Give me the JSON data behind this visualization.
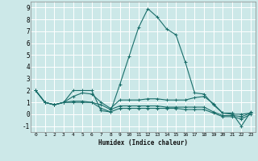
{
  "xlabel": "Humidex (Indice chaleur)",
  "bg_color": "#cce8e8",
  "grid_color": "#ffffff",
  "line_color": "#1a6e6a",
  "xlim": [
    -0.5,
    23.5
  ],
  "ylim": [
    -1.5,
    9.5
  ],
  "ytick_values": [
    -1,
    0,
    1,
    2,
    3,
    4,
    5,
    6,
    7,
    8,
    9
  ],
  "lines": [
    {
      "x": [
        0,
        1,
        2,
        3,
        4,
        5,
        6,
        7,
        8,
        9,
        10,
        11,
        12,
        13,
        14,
        15,
        16,
        17,
        18,
        19,
        20,
        21,
        22,
        23
      ],
      "y": [
        2.0,
        1.0,
        0.8,
        1.0,
        2.0,
        2.0,
        2.0,
        0.3,
        0.2,
        2.5,
        4.9,
        7.3,
        8.9,
        8.2,
        7.2,
        6.7,
        4.4,
        1.8,
        1.7,
        0.8,
        0.1,
        0.1,
        -1.0,
        0.2
      ]
    },
    {
      "x": [
        0,
        1,
        2,
        3,
        4,
        5,
        6,
        7,
        8,
        9,
        10,
        11,
        12,
        13,
        14,
        15,
        16,
        17,
        18,
        19,
        20,
        21,
        22,
        23
      ],
      "y": [
        2.0,
        1.0,
        0.8,
        1.0,
        1.5,
        1.8,
        1.7,
        1.0,
        0.5,
        1.2,
        1.2,
        1.2,
        1.3,
        1.3,
        1.2,
        1.2,
        1.2,
        1.4,
        1.5,
        0.9,
        0.1,
        0.0,
        0.0,
        0.1
      ]
    },
    {
      "x": [
        0,
        1,
        2,
        3,
        4,
        5,
        6,
        7,
        8,
        9,
        10,
        11,
        12,
        13,
        14,
        15,
        16,
        17,
        18,
        19,
        20,
        21,
        22,
        23
      ],
      "y": [
        2.0,
        1.0,
        0.8,
        1.0,
        1.1,
        1.1,
        1.0,
        0.8,
        0.4,
        0.7,
        0.7,
        0.7,
        0.7,
        0.7,
        0.6,
        0.6,
        0.6,
        0.6,
        0.6,
        0.2,
        -0.1,
        -0.1,
        -0.2,
        0.1
      ]
    },
    {
      "x": [
        0,
        1,
        2,
        3,
        4,
        5,
        6,
        7,
        8,
        9,
        10,
        11,
        12,
        13,
        14,
        15,
        16,
        17,
        18,
        19,
        20,
        21,
        22,
        23
      ],
      "y": [
        2.0,
        1.0,
        0.8,
        1.0,
        1.0,
        1.0,
        1.0,
        0.5,
        0.2,
        0.5,
        0.5,
        0.5,
        0.5,
        0.5,
        0.5,
        0.5,
        0.4,
        0.4,
        0.4,
        0.1,
        -0.2,
        -0.2,
        -0.4,
        0.0
      ]
    }
  ]
}
